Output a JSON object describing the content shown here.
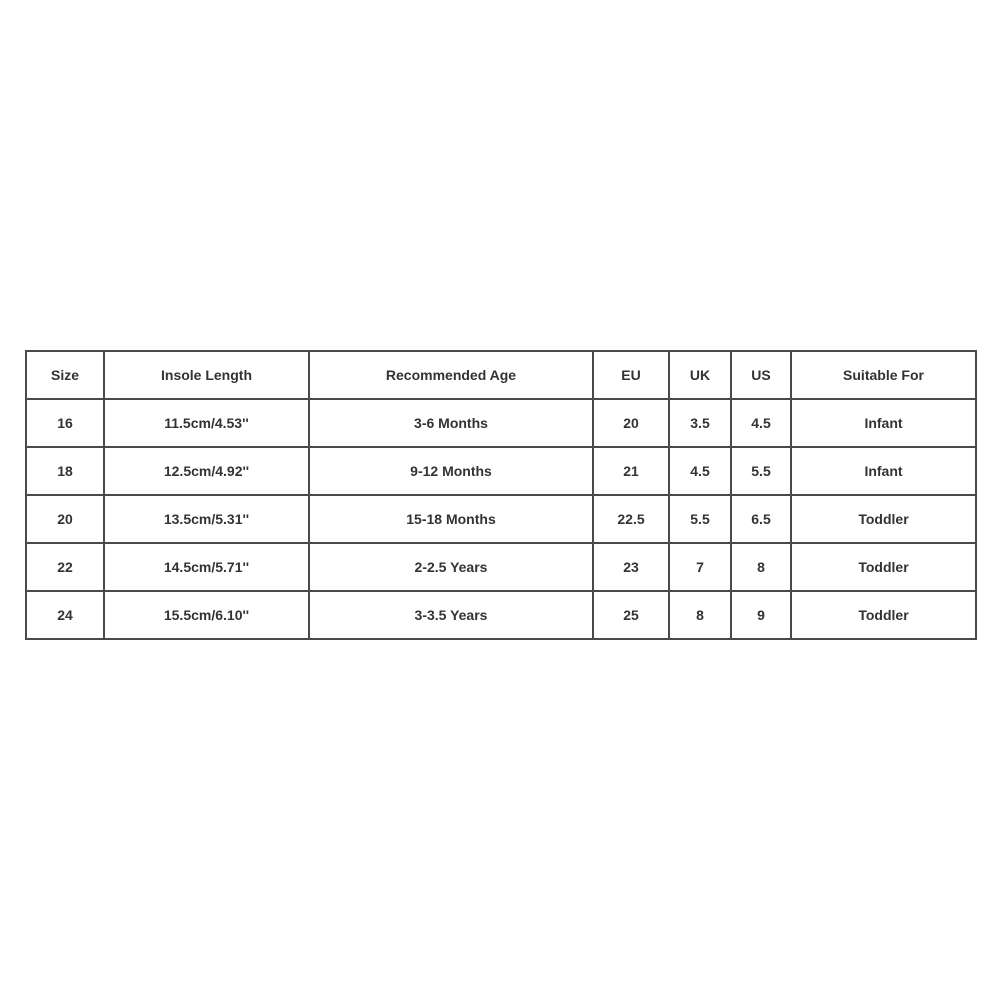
{
  "table": {
    "headers": [
      "Size",
      "Insole Length",
      "Recommended Age",
      "EU",
      "UK",
      "US",
      "Suitable For"
    ],
    "rows": [
      [
        "16",
        "11.5cm/4.53''",
        "3-6 Months",
        "20",
        "3.5",
        "4.5",
        "Infant"
      ],
      [
        "18",
        "12.5cm/4.92''",
        "9-12 Months",
        "21",
        "4.5",
        "5.5",
        "Infant"
      ],
      [
        "20",
        "13.5cm/5.31''",
        "15-18 Months",
        "22.5",
        "5.5",
        "6.5",
        "Toddler"
      ],
      [
        "22",
        "14.5cm/5.71''",
        "2-2.5 Years",
        "23",
        "7",
        "8",
        "Toddler"
      ],
      [
        "24",
        "15.5cm/6.10''",
        "3-3.5 Years",
        "25",
        "8",
        "9",
        "Toddler"
      ]
    ]
  }
}
